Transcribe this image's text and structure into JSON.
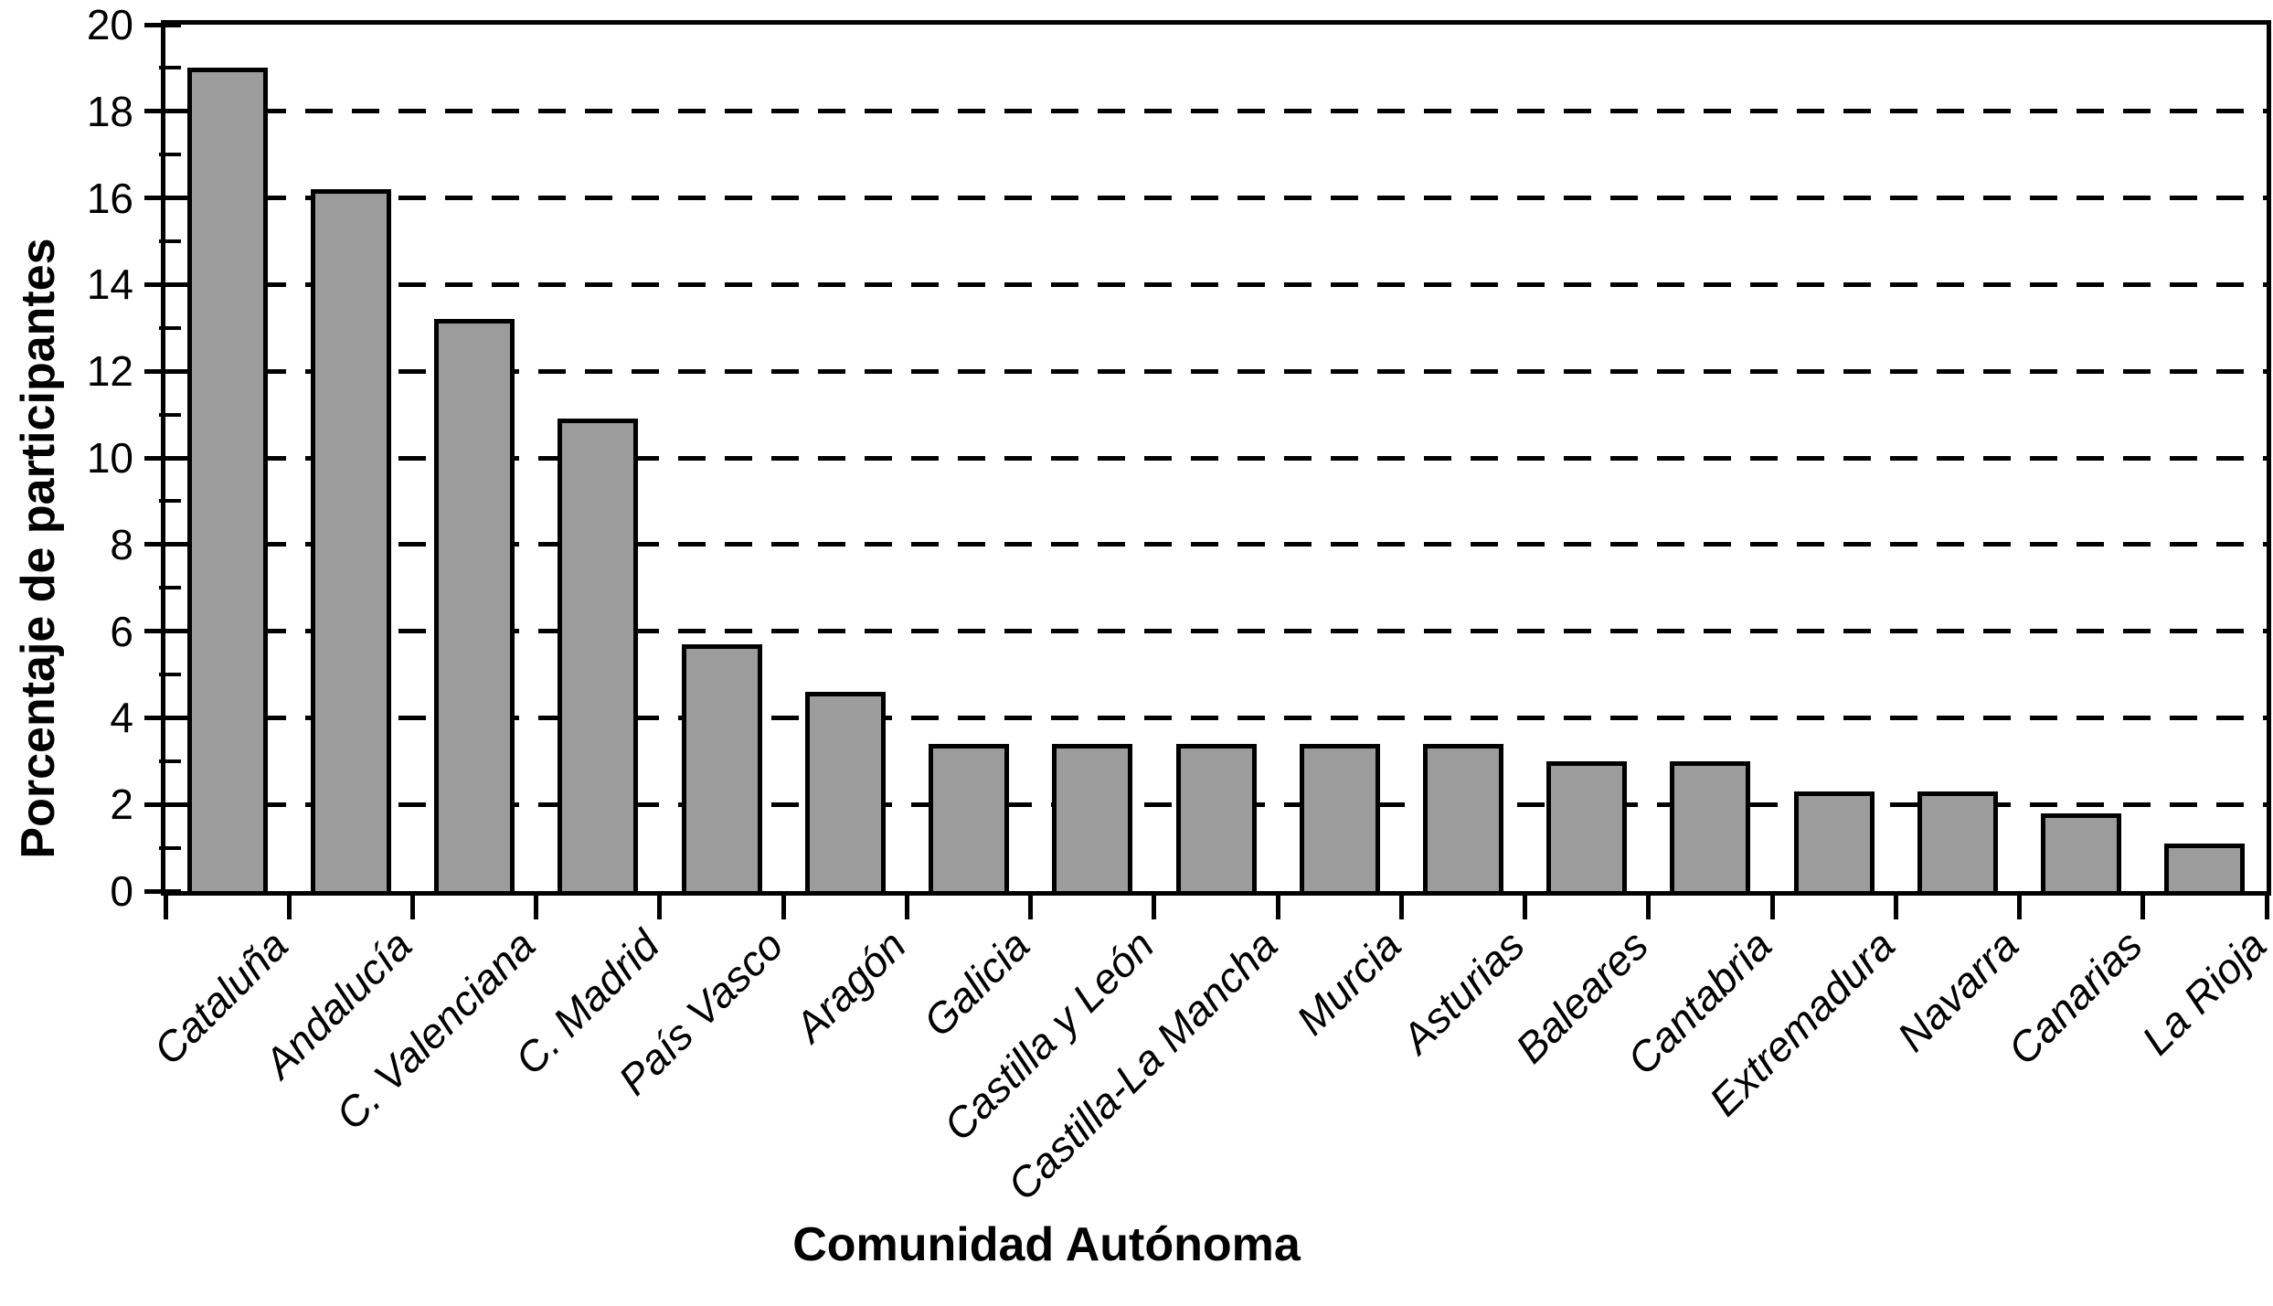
{
  "chart_data": {
    "type": "bar",
    "title": "",
    "xlabel": "Comunidad Autónoma",
    "ylabel": "Porcentaje de participantes",
    "categories": [
      "Cataluña",
      "Andalucía",
      "C. Valenciana",
      "C. Madrid",
      "País Vasco",
      "Aragón",
      "Galicia",
      "Castilla y León",
      "Castilla-La Mancha",
      "Murcia",
      "Asturias",
      "Baleares",
      "Cantabria",
      "Extremadura",
      "Navarra",
      "Canarias",
      "La Rioja"
    ],
    "values": [
      19.0,
      16.2,
      13.2,
      10.9,
      5.7,
      4.6,
      3.4,
      3.4,
      3.4,
      3.4,
      3.4,
      3.0,
      3.0,
      2.3,
      2.3,
      1.8,
      1.1
    ],
    "ylim": [
      0,
      20
    ],
    "yticks": [
      0,
      2,
      4,
      6,
      8,
      10,
      12,
      14,
      16,
      18,
      20
    ],
    "y_minor_ticks": [
      1,
      3,
      5,
      7,
      9,
      11,
      13,
      15,
      17,
      19
    ],
    "grid": "horizontal dashed lines at even values, plot framed on all four sides",
    "legend": "none",
    "colors": {
      "bar_fill": "#9c9c9c",
      "bar_border": "#000000",
      "axis": "#000000",
      "background": "#ffffff",
      "text": "#000000"
    }
  }
}
